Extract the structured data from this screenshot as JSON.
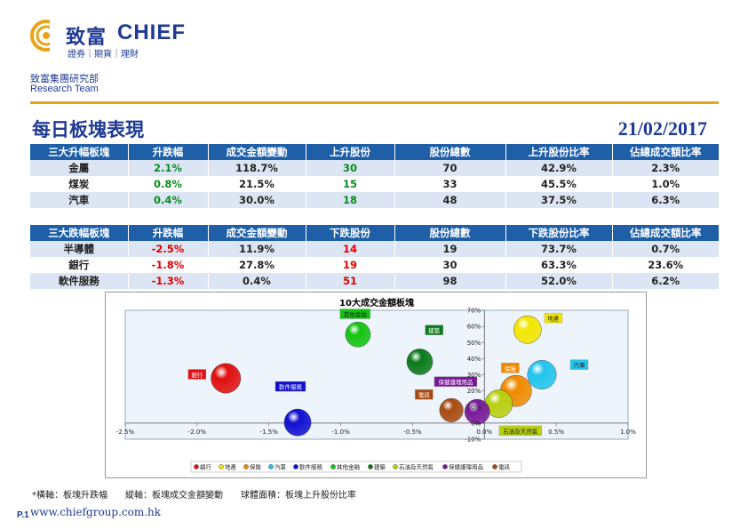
{
  "header": {
    "logo_zh": "致富",
    "logo_en": "CHIEF",
    "logo_tag": "證券｜期貨｜理財",
    "dept_zh": "致富集團研究部",
    "dept_en": "Research Team"
  },
  "title": "每日板塊表現",
  "date": "21/02/2017",
  "colors": {
    "brand": "#1f3a93",
    "header_bg": "#1f5fa8",
    "row_alt": "#dbe5f3",
    "rule": "#e8a317",
    "up": "#0a8a1f",
    "down": "#e00000"
  },
  "up_table": {
    "headers": [
      "三大升幅板塊",
      "升跌幅",
      "成交金額變動",
      "上升股份",
      "股份總數",
      "上升股份比率",
      "佔總成交額比率"
    ],
    "rows": [
      [
        "金屬",
        "2.1%",
        "118.7%",
        "30",
        "70",
        "42.9%",
        "2.3%"
      ],
      [
        "煤炭",
        "0.8%",
        "21.5%",
        "15",
        "33",
        "45.5%",
        "1.0%"
      ],
      [
        "汽車",
        "0.4%",
        "30.0%",
        "18",
        "48",
        "37.5%",
        "6.3%"
      ]
    ]
  },
  "down_table": {
    "headers": [
      "三大跌幅板塊",
      "升跌幅",
      "成交金額變動",
      "下跌股份",
      "股份總數",
      "下跌股份比率",
      "佔總成交額比率"
    ],
    "rows": [
      [
        "半導體",
        "-2.5%",
        "11.9%",
        "14",
        "19",
        "73.7%",
        "0.7%"
      ],
      [
        "銀行",
        "-1.8%",
        "27.8%",
        "19",
        "30",
        "63.3%",
        "23.6%"
      ],
      [
        "軟件服務",
        "-1.3%",
        "0.4%",
        "51",
        "98",
        "52.0%",
        "6.2%"
      ]
    ]
  },
  "chart_data": {
    "type": "scatter",
    "title": "10大成交金額板塊",
    "xlim": [
      -0.025,
      0.01
    ],
    "ylim": [
      -0.1,
      0.7
    ],
    "x_ticks": [
      "-2.5%",
      "-2.0%",
      "-1.5%",
      "-1.0%",
      "-0.5%",
      "0.0%",
      "0.5%",
      "1.0%"
    ],
    "y_ticks": [
      "-10%",
      "0%",
      "10%",
      "20%",
      "30%",
      "40%",
      "50%",
      "60%",
      "70%"
    ],
    "series": [
      {
        "name": "銀行",
        "x": -0.018,
        "y": 0.278,
        "color": "#e01010",
        "r": 0.633
      },
      {
        "name": "地產",
        "x": 0.003,
        "y": 0.58,
        "color": "#f2e600",
        "r": 0.55
      },
      {
        "name": "保險",
        "x": 0.0022,
        "y": 0.2,
        "color": "#f08a00",
        "r": 0.7
      },
      {
        "name": "汽車",
        "x": 0.004,
        "y": 0.3,
        "color": "#22c4ee",
        "r": 0.6
      },
      {
        "name": "軟件服務",
        "x": -0.013,
        "y": 0.004,
        "color": "#1010d0",
        "r": 0.52
      },
      {
        "name": "其他金融",
        "x": -0.0088,
        "y": 0.55,
        "color": "#12c412",
        "r": 0.45
      },
      {
        "name": "建築",
        "x": -0.0045,
        "y": 0.38,
        "color": "#0a7a1a",
        "r": 0.48
      },
      {
        "name": "石油及天然氣",
        "x": 0.001,
        "y": 0.12,
        "color": "#b8d010",
        "r": 0.55
      },
      {
        "name": "保健護理用品",
        "x": -0.0005,
        "y": 0.07,
        "color": "#7a1a9a",
        "r": 0.45
      },
      {
        "name": "電訊",
        "x": -0.0023,
        "y": 0.08,
        "color": "#a84a10",
        "r": 0.4
      }
    ],
    "labels": [
      {
        "text": "銀行",
        "x": -0.02,
        "y": 0.3,
        "bg": "#e01010",
        "fg": "#fff"
      },
      {
        "text": "地產",
        "x": 0.0048,
        "y": 0.65,
        "bg": "#f2e600",
        "fg": "#222"
      },
      {
        "text": "保險",
        "x": 0.0018,
        "y": 0.34,
        "bg": "#f08a00",
        "fg": "#fff"
      },
      {
        "text": "汽車",
        "x": 0.0066,
        "y": 0.36,
        "bg": "#22c4ee",
        "fg": "#222"
      },
      {
        "text": "軟件服務",
        "x": -0.0135,
        "y": 0.225,
        "bg": "#1010d0",
        "fg": "#fff"
      },
      {
        "text": "其他金融",
        "x": -0.009,
        "y": 0.675,
        "bg": "#12c412",
        "fg": "#222"
      },
      {
        "text": "建築",
        "x": -0.0035,
        "y": 0.575,
        "bg": "#0a7a1a",
        "fg": "#fff"
      },
      {
        "text": "石油及天然氣",
        "x": 0.0025,
        "y": -0.05,
        "bg": "#b8d010",
        "fg": "#222"
      },
      {
        "text": "保健護理用品",
        "x": -0.002,
        "y": 0.255,
        "bg": "#7a1a9a",
        "fg": "#fff"
      },
      {
        "text": "電訊",
        "x": -0.0042,
        "y": 0.175,
        "bg": "#a84a10",
        "fg": "#fff"
      }
    ],
    "legend": [
      "銀行",
      "地產",
      "保險",
      "汽車",
      "軟件服務",
      "其他金融",
      "建築",
      "石油及天然氣",
      "保健護理用品",
      "電訊"
    ],
    "legend_position": "bottom"
  },
  "footnote": "*橫軸：板塊升跌幅　　縱軸：板塊成交金額變動　　球體面積：板塊上升股份比率",
  "page_no": "P.1",
  "website": "www.chiefgroup.com.hk"
}
